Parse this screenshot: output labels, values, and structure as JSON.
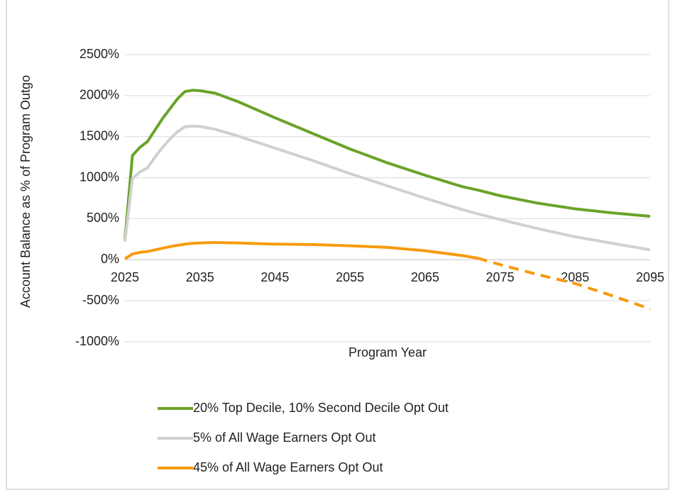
{
  "chart_data": {
    "type": "line",
    "x_label": "Program Year",
    "y_label": "Account Balance as % of Program Outgo",
    "x": [
      2025,
      2026,
      2027,
      2028,
      2029,
      2030,
      2031,
      2032,
      2033,
      2034,
      2035,
      2037,
      2040,
      2045,
      2050,
      2055,
      2060,
      2065,
      2070,
      2072,
      2075,
      2080,
      2085,
      2090,
      2095
    ],
    "series": [
      {
        "name": "20% Top Decile, 10% Second Decile Opt Out",
        "color": "#6aa329",
        "values": [
          250,
          1270,
          1370,
          1440,
          1580,
          1720,
          1840,
          1960,
          2050,
          2065,
          2060,
          2030,
          1930,
          1730,
          1540,
          1350,
          1180,
          1030,
          890,
          850,
          780,
          690,
          620,
          570,
          530
        ]
      },
      {
        "name": "5% of All Wage Earners Opt Out",
        "color": "#cfd1d0",
        "values": [
          220,
          990,
          1070,
          1120,
          1250,
          1370,
          1470,
          1560,
          1620,
          1630,
          1625,
          1590,
          1510,
          1360,
          1210,
          1050,
          900,
          750,
          610,
          560,
          490,
          380,
          280,
          200,
          120
        ]
      },
      {
        "name": "45% of All Wage Earners Opt Out",
        "color": "#f79a0f",
        "dashed_from_x": 2072,
        "values": [
          10,
          70,
          90,
          100,
          120,
          140,
          160,
          175,
          190,
          200,
          205,
          210,
          205,
          190,
          185,
          170,
          150,
          110,
          50,
          20,
          -60,
          -180,
          -290,
          -440,
          -600
        ]
      }
    ],
    "xlim": [
      2025,
      2095
    ],
    "xticks": [
      2025,
      2035,
      2045,
      2055,
      2065,
      2075,
      2085,
      2095
    ],
    "ylim": [
      -1000,
      2500
    ],
    "yticks": [
      {
        "value": -1000,
        "label": "-1000%"
      },
      {
        "value": -500,
        "label": "-500%"
      },
      {
        "value": 0,
        "label": "0%"
      },
      {
        "value": 500,
        "label": "500%"
      },
      {
        "value": 1000,
        "label": "1000%"
      },
      {
        "value": 1500,
        "label": "1500%"
      },
      {
        "value": 2000,
        "label": "2000%"
      },
      {
        "value": 2500,
        "label": "2500%"
      }
    ],
    "grid": true,
    "legend": "bottom"
  }
}
